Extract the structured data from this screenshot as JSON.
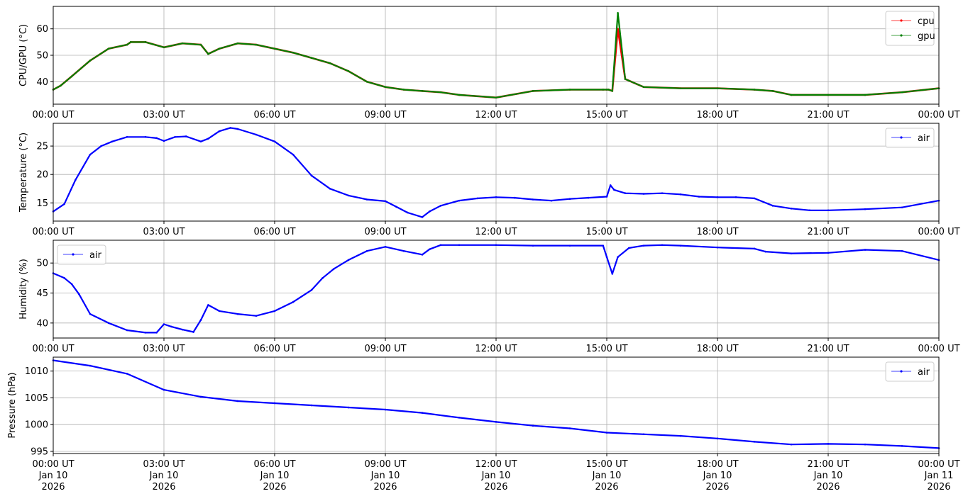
{
  "chart_data": [
    {
      "type": "line",
      "ylabel": "CPU/GPU (°C)",
      "ylim": [
        31.5,
        68.5
      ],
      "yticks": [
        40,
        50,
        60
      ],
      "x_ticks": [
        "00:00 UT",
        "03:00 UT",
        "06:00 UT",
        "09:00 UT",
        "12:00 UT",
        "15:00 UT",
        "18:00 UT",
        "21:00 UT",
        "00:00 UT"
      ],
      "x_hours": [
        0,
        0.2,
        0.5,
        1.0,
        1.5,
        2.0,
        2.1,
        2.5,
        3.0,
        3.5,
        4.0,
        4.2,
        4.5,
        5.0,
        5.5,
        6.0,
        6.5,
        7.0,
        7.5,
        8.0,
        8.5,
        9.0,
        9.5,
        10.0,
        10.5,
        11.0,
        12.0,
        13.0,
        14.0,
        14.9,
        15.0,
        15.05,
        15.15,
        15.3,
        15.5,
        16.0,
        17.0,
        18.0,
        19.0,
        19.5,
        20.0,
        21.0,
        22.0,
        23.0,
        24.0
      ],
      "series": [
        {
          "name": "cpu",
          "color": "#ff0000",
          "values": [
            37,
            38.5,
            42,
            48,
            52.5,
            54,
            55,
            55,
            53,
            54.5,
            54,
            50.5,
            52.5,
            54.5,
            54,
            52.5,
            51,
            49,
            47,
            44,
            40,
            38,
            37,
            36.5,
            36,
            35,
            34,
            36.5,
            37,
            37,
            37,
            37,
            36.5,
            60,
            41,
            38,
            37.5,
            37.5,
            37,
            36.5,
            35,
            35,
            35,
            36,
            37.5
          ]
        },
        {
          "name": "gpu",
          "color": "#008000",
          "values": [
            37,
            38.5,
            42,
            48,
            52.5,
            54,
            55,
            55,
            53,
            54.5,
            54,
            50.5,
            52.5,
            54.5,
            54,
            52.5,
            51,
            49,
            47,
            44,
            40,
            38,
            37,
            36.5,
            36,
            35,
            34,
            36.5,
            37,
            37,
            37,
            37,
            36.5,
            66,
            41,
            38,
            37.5,
            37.5,
            37,
            36.5,
            35,
            35,
            35,
            36,
            37.5
          ]
        }
      ],
      "legend": "top-right",
      "grid": true
    },
    {
      "type": "line",
      "ylabel": "Temperature (°C)",
      "ylim": [
        11.8,
        29
      ],
      "yticks": [
        15,
        20,
        25
      ],
      "x_ticks": [
        "00:00 UT",
        "03:00 UT",
        "06:00 UT",
        "09:00 UT",
        "12:00 UT",
        "15:00 UT",
        "18:00 UT",
        "21:00 UT",
        "00:00 UT"
      ],
      "x_hours": [
        0,
        0.3,
        0.6,
        1.0,
        1.3,
        1.6,
        2.0,
        2.5,
        2.8,
        3.0,
        3.3,
        3.6,
        4.0,
        4.2,
        4.5,
        4.8,
        5.0,
        5.5,
        6.0,
        6.5,
        7.0,
        7.5,
        8.0,
        8.5,
        9.0,
        9.3,
        9.6,
        10.0,
        10.2,
        10.5,
        11.0,
        11.5,
        12.0,
        12.5,
        13.0,
        13.5,
        14.0,
        14.5,
        15.0,
        15.1,
        15.2,
        15.5,
        16.0,
        16.5,
        17.0,
        17.5,
        18.0,
        18.5,
        19.0,
        19.5,
        20.0,
        20.5,
        21.0,
        22.0,
        23.0,
        24.0
      ],
      "series": [
        {
          "name": "air",
          "color": "#0000ff",
          "values": [
            13.5,
            14.8,
            19.0,
            23.5,
            25.0,
            25.8,
            26.6,
            26.6,
            26.4,
            25.9,
            26.6,
            26.7,
            25.8,
            26.3,
            27.6,
            28.2,
            28.0,
            27.0,
            25.8,
            23.5,
            19.8,
            17.5,
            16.3,
            15.6,
            15.3,
            14.3,
            13.3,
            12.5,
            13.5,
            14.5,
            15.4,
            15.8,
            16.0,
            15.9,
            15.6,
            15.4,
            15.7,
            15.9,
            16.1,
            18.1,
            17.3,
            16.7,
            16.6,
            16.7,
            16.5,
            16.1,
            16.0,
            16.0,
            15.8,
            14.5,
            14.0,
            13.7,
            13.7,
            13.9,
            14.2,
            15.4
          ]
        }
      ],
      "legend": "top-right",
      "grid": true
    },
    {
      "type": "line",
      "ylabel": "Humidity (%)",
      "ylim": [
        37.5,
        53.8
      ],
      "yticks": [
        40,
        45,
        50
      ],
      "x_ticks": [
        "00:00 UT",
        "03:00 UT",
        "06:00 UT",
        "09:00 UT",
        "12:00 UT",
        "15:00 UT",
        "18:00 UT",
        "21:00 UT",
        "00:00 UT"
      ],
      "x_hours": [
        0,
        0.3,
        0.5,
        0.7,
        1.0,
        1.5,
        2.0,
        2.5,
        2.8,
        3.0,
        3.2,
        3.5,
        3.8,
        4.0,
        4.2,
        4.5,
        5.0,
        5.5,
        6.0,
        6.5,
        7.0,
        7.3,
        7.6,
        8.0,
        8.5,
        9.0,
        9.5,
        10.0,
        10.2,
        10.5,
        11.0,
        12.0,
        13.0,
        14.0,
        14.9,
        15.0,
        15.15,
        15.3,
        15.6,
        16.0,
        16.5,
        17.0,
        18.0,
        19.0,
        19.3,
        20.0,
        21.0,
        22.0,
        23.0,
        24.0
      ],
      "series": [
        {
          "name": "air",
          "color": "#0000ff",
          "values": [
            48.3,
            47.5,
            46.5,
            44.8,
            41.5,
            40.0,
            38.8,
            38.4,
            38.4,
            39.8,
            39.4,
            38.9,
            38.5,
            40.5,
            43.0,
            42.0,
            41.5,
            41.2,
            42.0,
            43.5,
            45.5,
            47.5,
            49.0,
            50.5,
            52.0,
            52.7,
            52.0,
            51.4,
            52.3,
            53.0,
            53.0,
            53.0,
            52.9,
            52.9,
            52.9,
            51.0,
            48.2,
            51.0,
            52.5,
            52.9,
            53.0,
            52.9,
            52.6,
            52.4,
            51.9,
            51.6,
            51.7,
            52.2,
            52.0,
            50.5
          ]
        }
      ],
      "legend": "top-left",
      "grid": true
    },
    {
      "type": "line",
      "ylabel": "Pressure (hPa)",
      "ylim": [
        994.6,
        1012.6
      ],
      "yticks": [
        995,
        1000,
        1005,
        1010
      ],
      "x_ticks": [
        "00:00 UT\nJan 10\n2026",
        "03:00 UT\nJan 10\n2026",
        "06:00 UT\nJan 10\n2026",
        "09:00 UT\nJan 10\n2026",
        "12:00 UT\nJan 10\n2026",
        "15:00 UT\nJan 10\n2026",
        "18:00 UT\nJan 10\n2026",
        "21:00 UT\nJan 10\n2026",
        "00:00 UT\nJan 11\n2026"
      ],
      "x_hours": [
        0,
        1.0,
        2.0,
        3.0,
        4.0,
        5.0,
        6.0,
        7.0,
        8.0,
        9.0,
        10.0,
        11.0,
        12.0,
        13.0,
        14.0,
        15.0,
        16.0,
        17.0,
        18.0,
        19.0,
        20.0,
        21.0,
        22.0,
        23.0,
        24.0
      ],
      "series": [
        {
          "name": "air",
          "color": "#0000ff",
          "values": [
            1012.0,
            1011.0,
            1009.5,
            1006.5,
            1005.2,
            1004.4,
            1004.0,
            1003.6,
            1003.2,
            1002.8,
            1002.2,
            1001.3,
            1000.5,
            999.8,
            999.3,
            998.5,
            998.2,
            997.9,
            997.4,
            996.8,
            996.3,
            996.4,
            996.3,
            996.0,
            995.6
          ]
        }
      ],
      "legend": "top-right",
      "grid": true
    }
  ]
}
